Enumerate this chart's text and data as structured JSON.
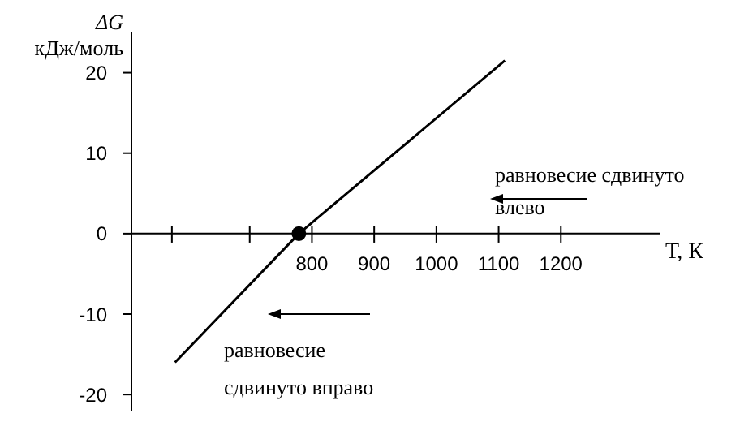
{
  "chart_data": {
    "type": "line",
    "xlabel": "Т, К",
    "ylabel": "ΔG кДж/моль",
    "xlim": [
      510,
      1360
    ],
    "ylim": [
      -22,
      25
    ],
    "xticks": [
      {
        "value": 575,
        "label": null
      },
      {
        "value": 700,
        "label": null
      },
      800,
      900,
      1000,
      1100,
      1200
    ],
    "yticks": [
      -20,
      -10,
      0,
      10,
      20
    ],
    "series": [
      {
        "color": "#000000",
        "marker": "none",
        "x": [
          580,
          779,
          1110
        ],
        "values": [
          -16,
          0,
          21.5
        ]
      },
      {
        "type": "scatter",
        "color": "#000000",
        "marker": "circle",
        "x": [
          779
        ],
        "values": [
          0
        ]
      }
    ],
    "line_style": "solid",
    "annotations": [
      "равновесие сдвинуто влево",
      "равновесие сдвинуто вправо"
    ]
  }
}
